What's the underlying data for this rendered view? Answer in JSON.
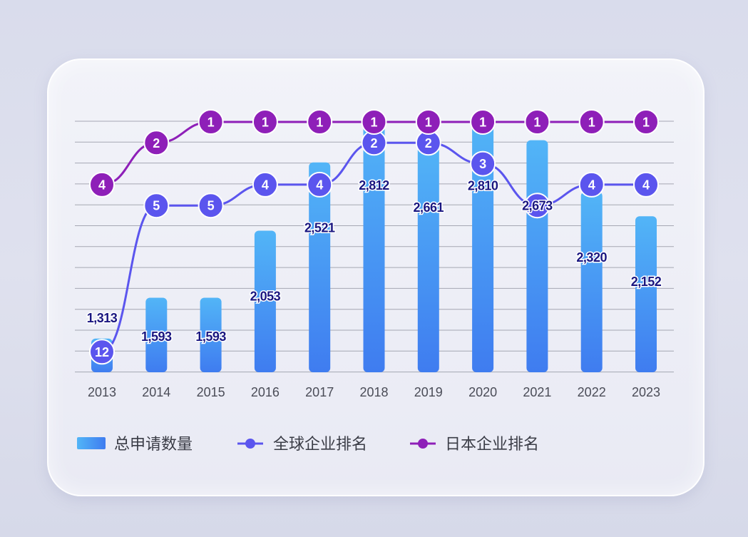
{
  "chart_data": {
    "type": "bar+line",
    "categories": [
      "2013",
      "2014",
      "2015",
      "2016",
      "2017",
      "2018",
      "2019",
      "2020",
      "2021",
      "2022",
      "2023"
    ],
    "bar_series": {
      "name": "总申请数量",
      "values": [
        1313,
        1593,
        1593,
        2053,
        2521,
        2812,
        2661,
        2810,
        2673,
        2320,
        2152
      ],
      "labels": [
        "1,313",
        "1,593",
        "1,593",
        "2,053",
        "2,521",
        "2,812",
        "2,661",
        "2,810",
        "2,673",
        "2,320",
        "2,152"
      ]
    },
    "line_series": [
      {
        "name": "全球企业排名",
        "values": [
          12,
          5,
          5,
          4,
          4,
          2,
          2,
          3,
          5,
          4,
          4
        ],
        "color": "#5b55ee"
      },
      {
        "name": "日本企业排名",
        "values": [
          4,
          2,
          1,
          1,
          1,
          1,
          1,
          1,
          1,
          1,
          1
        ],
        "color": "#8e1fb8"
      }
    ],
    "bar_gradient": [
      "#52b5f7",
      "#3f7cf0"
    ],
    "label_color": "#1a1680",
    "grid": true
  }
}
